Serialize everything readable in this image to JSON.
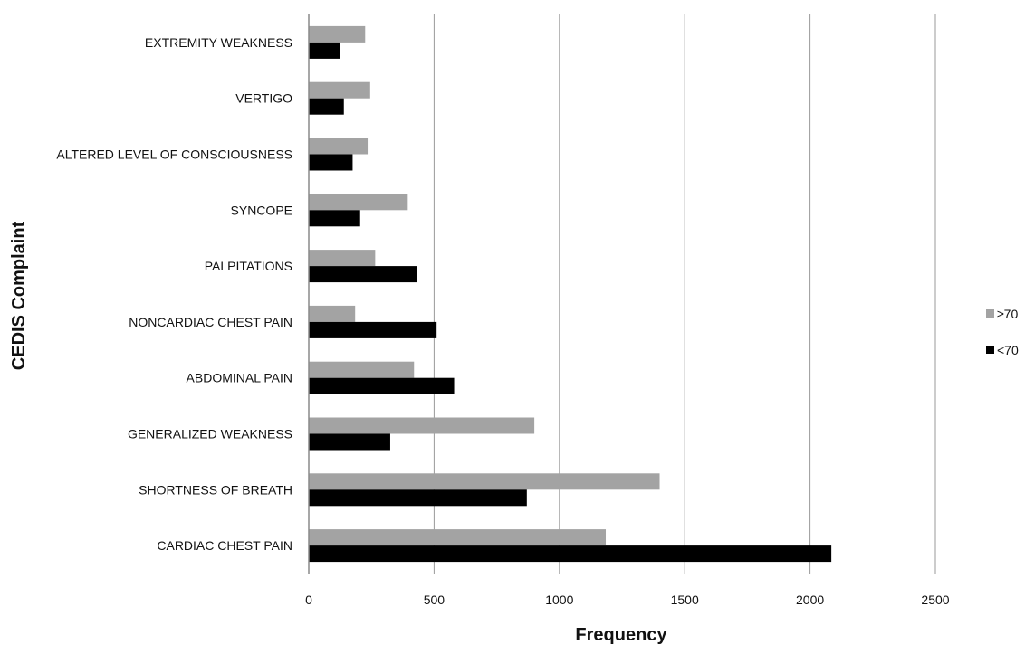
{
  "chart_data": {
    "type": "bar",
    "orientation": "horizontal",
    "title": "",
    "xlabel": "Frequency",
    "ylabel": "CEDIS Complaint",
    "xlim": [
      0,
      2500
    ],
    "xticks": [
      "0",
      "500",
      "1000",
      "1500",
      "2000",
      "2500"
    ],
    "grid": "vertical",
    "legend_position": "right",
    "categories": [
      "EXTREMITY WEAKNESS",
      "VERTIGO",
      "ALTERED LEVEL OF CONSCIOUSNESS",
      "SYNCOPE",
      "PALPITATIONS",
      "NONCARDIAC CHEST PAIN",
      "ABDOMINAL PAIN",
      "GENERALIZED WEAKNESS",
      "SHORTNESS OF BREATH",
      "CARDIAC CHEST PAIN"
    ],
    "series": [
      {
        "name": "≥70",
        "color": "#a3a3a3",
        "values": [
          225,
          245,
          235,
          395,
          265,
          185,
          420,
          900,
          1400,
          1185
        ]
      },
      {
        "name": "<70",
        "color": "#000000",
        "values": [
          125,
          140,
          175,
          205,
          430,
          510,
          580,
          325,
          870,
          2085
        ]
      }
    ]
  }
}
